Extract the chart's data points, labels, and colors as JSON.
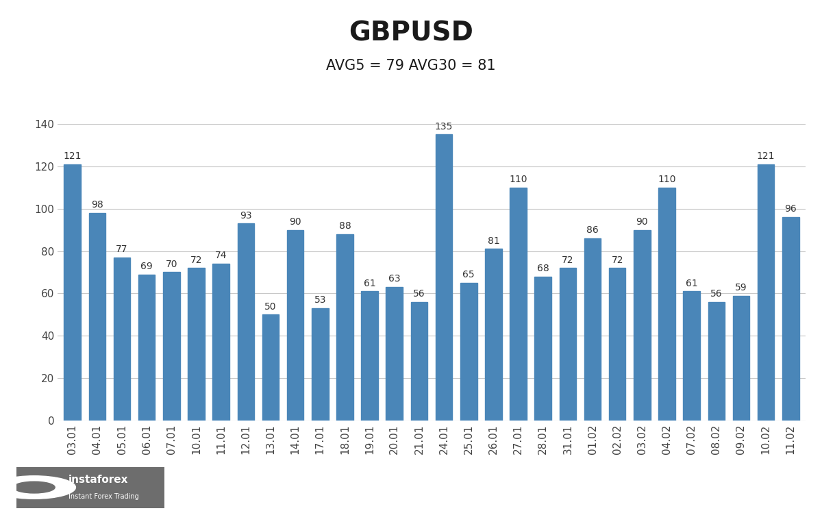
{
  "title": "GBPUSD",
  "subtitle": "AVG5 = 79 AVG30 = 81",
  "categories": [
    "03.01",
    "04.01",
    "05.01",
    "06.01",
    "07.01",
    "10.01",
    "11.01",
    "12.01",
    "13.01",
    "14.01",
    "17.01",
    "18.01",
    "19.01",
    "20.01",
    "21.01",
    "24.01",
    "25.01",
    "26.01",
    "27.01",
    "28.01",
    "31.01",
    "01.02",
    "02.02",
    "03.02",
    "04.02",
    "07.02",
    "08.02",
    "09.02",
    "10.02",
    "11.02"
  ],
  "values": [
    121,
    98,
    77,
    69,
    70,
    72,
    74,
    93,
    50,
    90,
    53,
    88,
    61,
    63,
    56,
    135,
    65,
    81,
    110,
    68,
    72,
    86,
    72,
    90,
    110,
    61,
    56,
    59,
    121,
    96
  ],
  "bar_color": "#4a86b8",
  "background_color": "#ffffff",
  "grid_color": "#c8c8c8",
  "title_fontsize": 28,
  "subtitle_fontsize": 15,
  "tick_fontsize": 11,
  "value_fontsize": 10,
  "ylim": [
    0,
    150
  ],
  "yticks": [
    0,
    20,
    40,
    60,
    80,
    100,
    120,
    140
  ],
  "logo_box_color": "#6d6d6d",
  "logo_text": "instaforex",
  "logo_subtext": "Instant Forex Trading"
}
